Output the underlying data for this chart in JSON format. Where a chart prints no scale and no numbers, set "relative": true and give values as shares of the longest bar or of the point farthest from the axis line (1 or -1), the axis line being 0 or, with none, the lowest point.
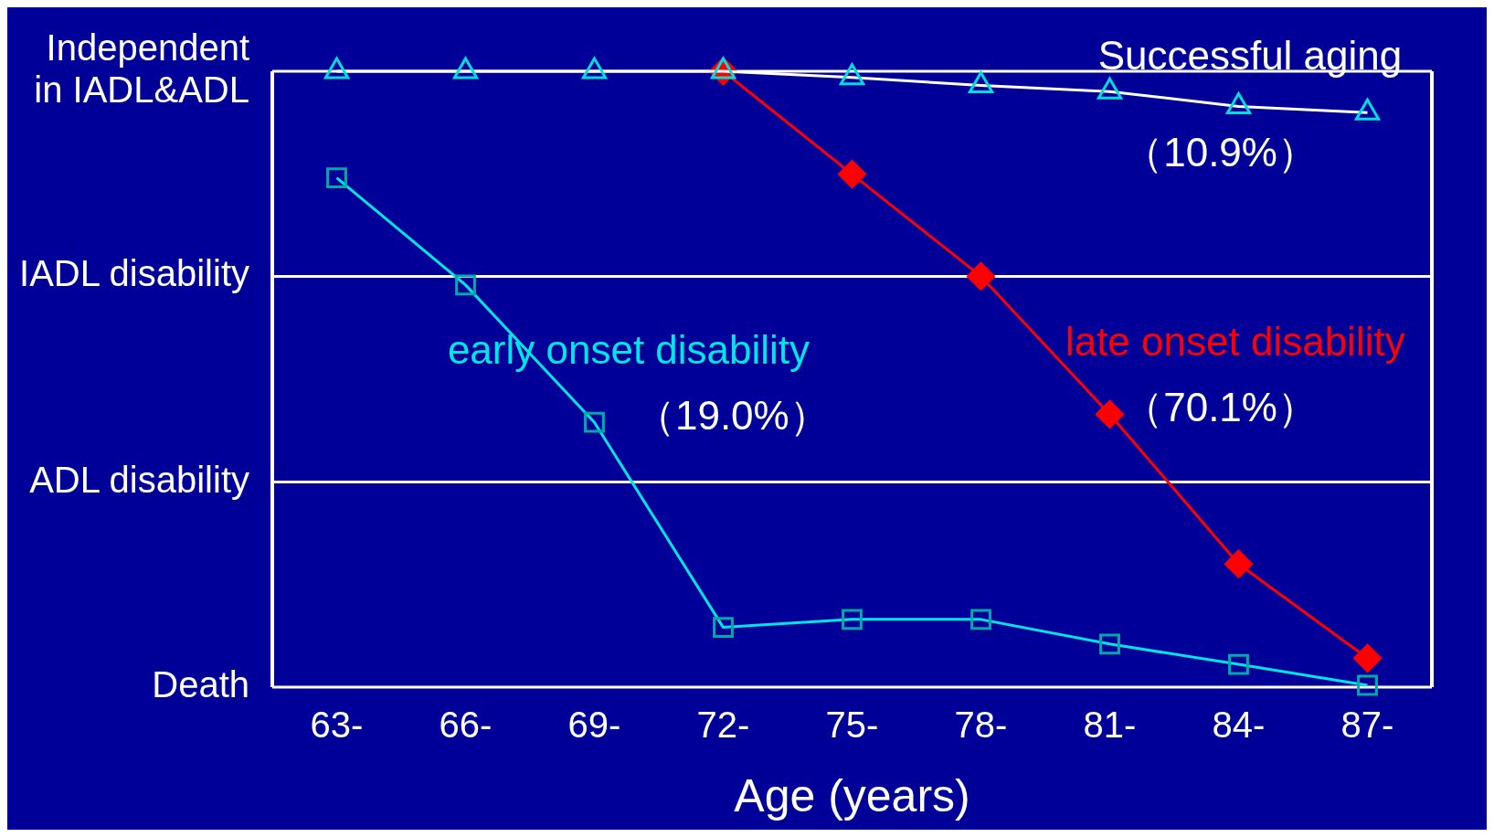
{
  "chart_data": {
    "type": "line",
    "xlabel": "Age (years)",
    "relative": true,
    "categories": [
      "63-",
      "66-",
      "69-",
      "72-",
      "75-",
      "78-",
      "81-",
      "84-",
      "87-"
    ],
    "series": [
      {
        "name": "Successful aging",
        "color": "#ffffff",
        "marker": "triangle",
        "values": [
          1,
          1,
          1,
          1,
          0.99,
          0.977,
          0.967,
          0.943,
          0.933
        ]
      },
      {
        "name": "early onset disability",
        "color": "#00e5e5",
        "marker": "square",
        "values": [
          0.827,
          0.653,
          0.43,
          0.097,
          0.11,
          0.11,
          0.07,
          0.037,
          0.003
        ]
      },
      {
        "name": "late onset disability",
        "color": "#ff0000",
        "marker": "diamond",
        "values": [
          null,
          null,
          null,
          1,
          0.833,
          0.667,
          0.443,
          0.2,
          0.047
        ]
      }
    ],
    "ref_lines": [
      {
        "axis": "y",
        "value": 0,
        "label": "Death"
      },
      {
        "axis": "y",
        "value": 0.333,
        "label": "ADL disability"
      },
      {
        "axis": "y",
        "value": 0.667,
        "label": "IADL disability"
      },
      {
        "axis": "y",
        "value": 1,
        "label": "Independent in IADL&ADL"
      }
    ],
    "annotations": [
      "（10.9%）",
      "（19.0%）",
      "（70.1%）"
    ]
  }
}
